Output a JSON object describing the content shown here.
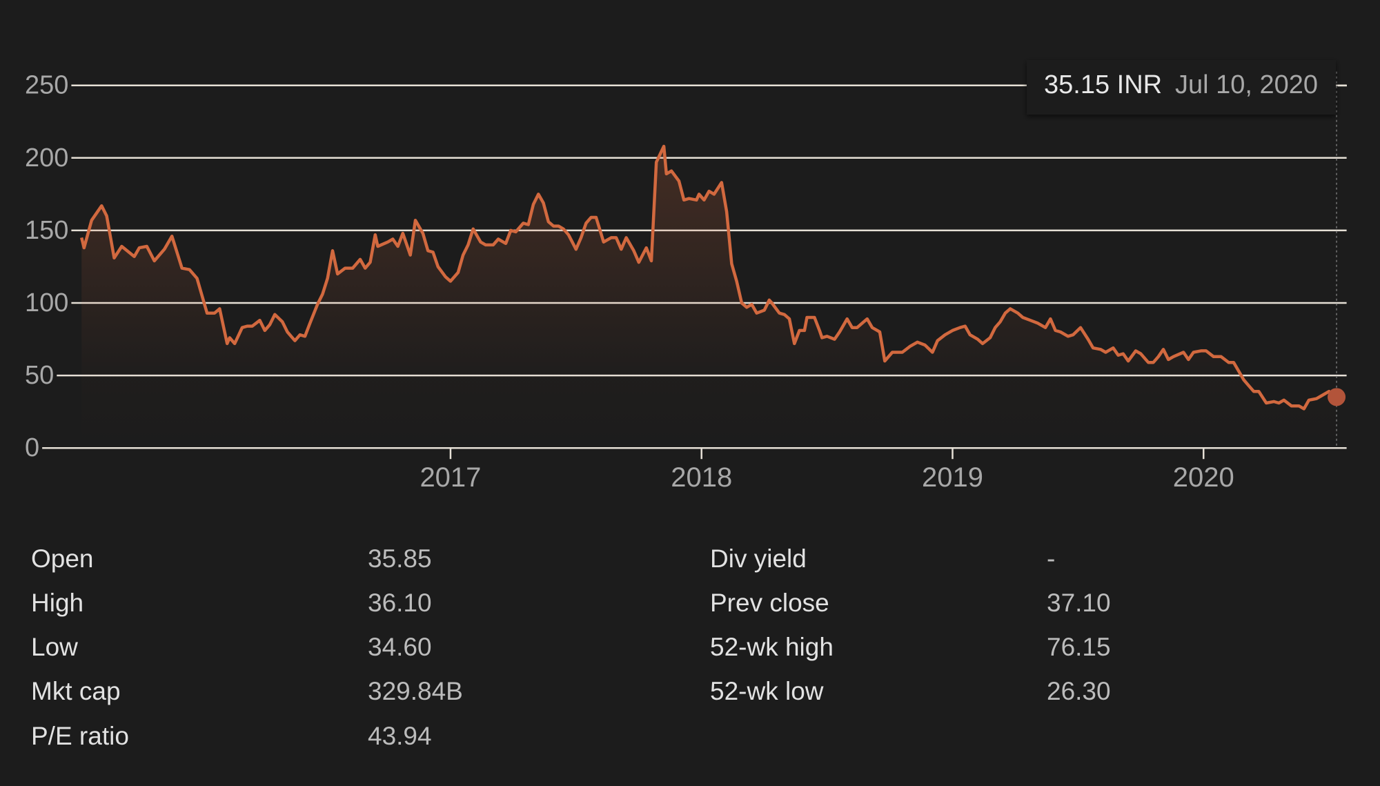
{
  "chart_data": {
    "type": "line",
    "tooltip_price": "35.15 INR",
    "tooltip_date": "Jul 10, 2020",
    "x": [
      2015.53,
      2015.54,
      2015.57,
      2015.61,
      2015.63,
      2015.66,
      2015.69,
      2015.74,
      2015.76,
      2015.79,
      2015.82,
      2015.86,
      2015.89,
      2015.93,
      2015.96,
      2015.99,
      2016.03,
      2016.06,
      2016.08,
      2016.11,
      2016.12,
      2016.14,
      2016.17,
      2016.19,
      2016.21,
      2016.24,
      2016.26,
      2016.28,
      2016.3,
      2016.33,
      2016.35,
      2016.38,
      2016.4,
      2016.42,
      2016.44,
      2016.47,
      2016.49,
      2016.51,
      2016.53,
      2016.55,
      2016.58,
      2016.61,
      2016.64,
      2016.66,
      2016.68,
      2016.7,
      2016.71,
      2016.75,
      2016.77,
      2016.79,
      2016.81,
      2016.84,
      2016.86,
      2016.89,
      2016.91,
      2016.93,
      2016.95,
      2016.98,
      2017.0,
      2017.03,
      2017.05,
      2017.07,
      2017.09,
      2017.12,
      2017.14,
      2017.17,
      2017.19,
      2017.22,
      2017.24,
      2017.26,
      2017.29,
      2017.31,
      2017.33,
      2017.35,
      2017.37,
      2017.39,
      2017.41,
      2017.43,
      2017.45,
      2017.47,
      2017.5,
      2017.52,
      2017.54,
      2017.56,
      2017.58,
      2017.61,
      2017.64,
      2017.66,
      2017.68,
      2017.7,
      2017.73,
      2017.75,
      2017.78,
      2017.8,
      2017.82,
      2017.85,
      2017.86,
      2017.88,
      2017.91,
      2017.93,
      2017.95,
      2017.98,
      2017.99,
      2018.01,
      2018.03,
      2018.05,
      2018.08,
      2018.1,
      2018.12,
      2018.14,
      2018.16,
      2018.18,
      2018.2,
      2018.22,
      2018.25,
      2018.27,
      2018.28,
      2018.31,
      2018.33,
      2018.35,
      2018.37,
      2018.39,
      2018.41,
      2018.42,
      2018.45,
      2018.47,
      2018.48,
      2018.5,
      2018.53,
      2018.55,
      2018.58,
      2018.6,
      2018.62,
      2018.66,
      2018.68,
      2018.71,
      2018.73,
      2018.76,
      2018.8,
      2018.83,
      2018.86,
      2018.89,
      2018.92,
      2018.94,
      2018.97,
      2019.0,
      2019.03,
      2019.05,
      2019.07,
      2019.1,
      2019.12,
      2019.15,
      2019.17,
      2019.19,
      2019.21,
      2019.23,
      2019.26,
      2019.28,
      2019.31,
      2019.34,
      2019.37,
      2019.39,
      2019.41,
      2019.43,
      2019.46,
      2019.48,
      2019.51,
      2019.54,
      2019.56,
      2019.59,
      2019.61,
      2019.64,
      2019.66,
      2019.68,
      2019.7,
      2019.73,
      2019.75,
      2019.78,
      2019.8,
      2019.82,
      2019.84,
      2019.86,
      2019.88,
      2019.92,
      2019.94,
      2019.96,
      2019.99,
      2020.01,
      2020.04,
      2020.07,
      2020.1,
      2020.12,
      2020.14,
      2020.16,
      2020.18,
      2020.2,
      2020.22,
      2020.25,
      2020.28,
      2020.3,
      2020.32,
      2020.35,
      2020.38,
      2020.4,
      2020.42,
      2020.45,
      2020.47,
      2020.5,
      2020.53
    ],
    "series": [
      {
        "color": "#d2693f",
        "values": [
          145,
          138,
          157,
          167,
          160,
          131,
          139,
          132,
          138,
          139,
          129,
          137,
          146,
          124,
          123,
          117,
          93,
          93,
          96,
          72,
          76,
          72,
          83,
          84,
          84,
          88,
          81,
          85,
          92,
          87,
          80,
          74,
          78,
          77,
          86,
          99,
          106,
          117,
          136,
          120,
          124,
          124,
          130,
          124,
          128,
          147,
          139,
          142,
          144,
          139,
          148,
          133,
          157,
          148,
          136,
          135,
          125,
          118,
          115,
          121,
          133,
          140,
          151,
          142,
          140,
          140,
          144,
          141,
          150,
          149,
          155,
          154,
          168,
          175,
          169,
          156,
          153,
          153,
          151,
          147,
          137,
          145,
          155,
          159,
          159,
          142,
          145,
          145,
          137,
          145,
          136,
          128,
          138,
          129,
          197,
          208,
          189,
          191,
          184,
          171,
          172,
          171,
          175,
          171,
          177,
          175,
          183,
          163,
          127,
          115,
          100,
          97,
          99,
          93,
          95,
          102,
          100,
          93,
          92,
          89,
          72,
          81,
          81,
          90,
          90,
          81,
          76,
          77,
          75,
          80,
          89,
          83,
          83,
          89,
          83,
          80,
          60,
          66,
          66,
          70,
          73,
          71,
          66,
          74,
          78,
          81,
          83,
          84,
          78,
          75,
          72,
          76,
          83,
          87,
          93,
          96,
          93,
          90,
          88,
          86,
          83,
          89,
          81,
          80,
          77,
          78,
          83,
          75,
          69,
          68,
          66,
          69,
          64,
          65,
          60,
          67,
          65,
          59,
          59,
          63,
          68,
          61,
          63,
          66,
          61,
          66,
          67,
          67,
          63,
          63,
          59,
          59,
          53,
          47,
          43,
          39,
          39,
          31,
          32,
          31,
          33,
          29,
          29,
          27,
          33,
          34,
          36,
          39,
          35.15
        ]
      }
    ],
    "xlim": [
      2015.37,
      2020.57
    ],
    "xticks": [
      2017,
      2018,
      2019,
      2020
    ],
    "ylim": [
      0,
      250
    ],
    "yticks": [
      0,
      50,
      100,
      150,
      200,
      250
    ],
    "grid": true
  },
  "stats": {
    "left": [
      {
        "label": "Open",
        "value": "35.85"
      },
      {
        "label": "High",
        "value": "36.10"
      },
      {
        "label": "Low",
        "value": "34.60"
      },
      {
        "label": "Mkt cap",
        "value": "329.84B"
      },
      {
        "label": "P/E ratio",
        "value": "43.94"
      }
    ],
    "right": [
      {
        "label": "Div yield",
        "value": "-"
      },
      {
        "label": "Prev close",
        "value": "37.10"
      },
      {
        "label": "52-wk high",
        "value": "76.15"
      },
      {
        "label": "52-wk low",
        "value": "26.30"
      }
    ]
  }
}
